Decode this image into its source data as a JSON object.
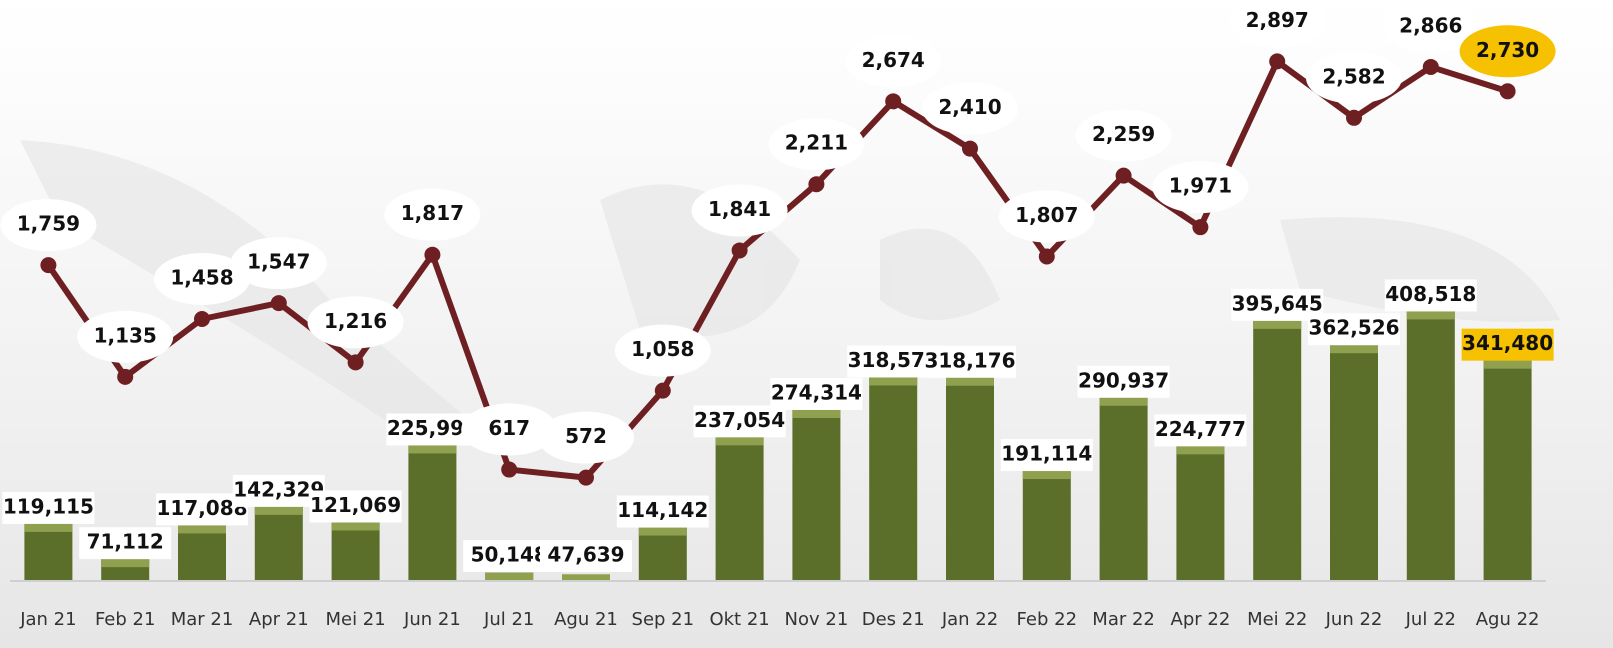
{
  "chart_data": {
    "type": "bar",
    "categories": [
      "Jan 21",
      "Feb 21",
      "Mar 21",
      "Apr 21",
      "Mei 21",
      "Jun 21",
      "Jul 21",
      "Agu 21",
      "Sep 21",
      "Okt 21",
      "Nov 21",
      "Des 21",
      "Jan 22",
      "Feb 22",
      "Mar 22",
      "Apr 22",
      "Mei 22",
      "Jun 22",
      "Jul 22",
      "Agu 22"
    ],
    "series": [
      {
        "type": "bar",
        "color": "#5b6f2b",
        "values": [
          119115,
          71112,
          117088,
          142329,
          121069,
          225999,
          50148,
          47639,
          114142,
          237054,
          274314,
          318577,
          318176,
          191114,
          290937,
          224777,
          395645,
          362526,
          408518,
          341480
        ],
        "value_labels": [
          "119,115",
          "71,112",
          "117,088",
          "142,329",
          "121,069",
          "225,999",
          "50,148",
          "47,639",
          "114,142",
          "237,054",
          "274,314",
          "318,577",
          "318,176",
          "191,114",
          "290,937",
          "224,777",
          "395,645",
          "362,526",
          "408,518",
          "341,480"
        ]
      },
      {
        "type": "line",
        "axis": "y2",
        "color": "#6e1f22",
        "values": [
          1759,
          1135,
          1458,
          1547,
          1216,
          1817,
          617,
          572,
          1058,
          1841,
          2211,
          2674,
          2410,
          1807,
          2259,
          1971,
          2897,
          2582,
          2866,
          2730
        ],
        "value_labels": [
          "1,759",
          "1,135",
          "1,458",
          "1,547",
          "1,216",
          "1,817",
          "617",
          "572",
          "1,058",
          "1,841",
          "2,211",
          "2,674",
          "2,410",
          "1,807",
          "2,259",
          "1,971",
          "2,897",
          "2,582",
          "2,866",
          "2,730"
        ]
      }
    ],
    "ylim": [
      40000,
      830000
    ],
    "y2lim": [
      0,
      3240
    ],
    "highlight_color": "#f6c100"
  }
}
